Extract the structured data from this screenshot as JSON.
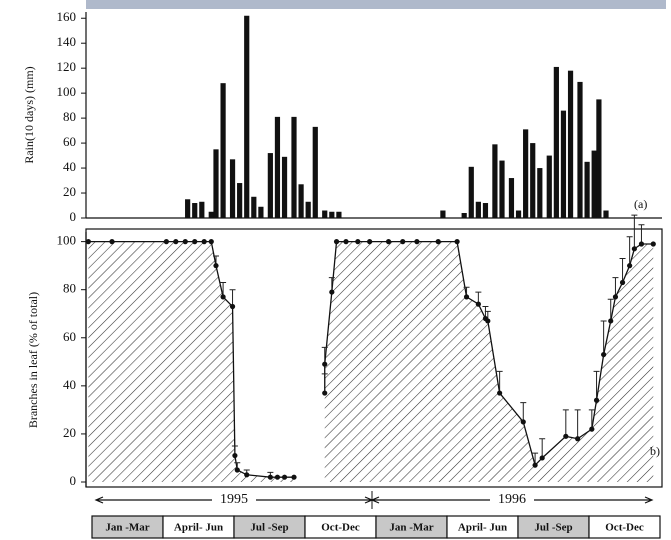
{
  "chart_data": [
    {
      "type": "bar",
      "ylabel": "Rain(10 days) (mm)",
      "panel_label": "(a)",
      "color": "#111111",
      "x": [
        4.3,
        4.6,
        4.9,
        5.3,
        5.5,
        5.8,
        6.2,
        6.5,
        6.8,
        7.1,
        7.4,
        7.8,
        8.1,
        8.4,
        8.8,
        9.1,
        9.4,
        9.7,
        10.1,
        10.4,
        10.7,
        15.1,
        16.0,
        16.3,
        16.6,
        16.9,
        17.3,
        17.6,
        18.0,
        18.3,
        18.6,
        18.9,
        19.2,
        19.6,
        19.9,
        20.2,
        20.5,
        20.9,
        21.2,
        21.5,
        21.7,
        22.0
      ],
      "values": [
        15,
        12,
        13,
        5,
        55,
        108,
        47,
        28,
        162,
        17,
        9,
        52,
        81,
        49,
        81,
        27,
        13,
        73,
        6,
        5,
        5,
        6,
        4,
        41,
        13,
        12,
        59,
        46,
        32,
        6,
        71,
        60,
        40,
        50,
        121,
        86,
        118,
        109,
        45,
        54,
        95,
        6
      ],
      "xlim": [
        0,
        24.2
      ],
      "ylim": [
        0,
        165
      ],
      "yticks": [
        0,
        20,
        40,
        60,
        80,
        100,
        120,
        140,
        160
      ]
    },
    {
      "type": "line",
      "ylabel": "Branches in leaf (% of total)",
      "panel_label": "b)",
      "color": "#111111",
      "x": [
        0.1,
        1.1,
        3.4,
        3.8,
        4.2,
        4.6,
        5.0,
        5.3,
        5.5,
        5.8,
        6.2,
        6.3,
        6.4,
        6.8,
        7.8,
        8.1,
        8.4,
        8.8,
        9.3,
        10.1,
        10.1,
        10.4,
        10.6,
        11.0,
        11.5,
        12.0,
        12.8,
        13.4,
        14.0,
        14.9,
        15.7,
        16.1,
        16.6,
        16.9,
        17.0,
        17.5,
        18.5,
        19.0,
        19.3,
        20.3,
        20.8,
        21.4,
        21.6,
        21.9,
        22.2,
        22.4,
        22.7,
        23.0,
        23.2,
        23.5,
        24.0
      ],
      "values": [
        100,
        100,
        100,
        100,
        100,
        100,
        100,
        100,
        90,
        77,
        73,
        11,
        5,
        3,
        2,
        2,
        2,
        2,
        null,
        37,
        49,
        79,
        100,
        100,
        100,
        100,
        100,
        100,
        100,
        100,
        100,
        77,
        74,
        68,
        67,
        37,
        25,
        7,
        10,
        19,
        18,
        22,
        34,
        53,
        67,
        77,
        83,
        90,
        97,
        99,
        99
      ],
      "errors": [
        null,
        null,
        null,
        null,
        null,
        null,
        null,
        null,
        4,
        6,
        7,
        4,
        3,
        2,
        2,
        null,
        null,
        null,
        null,
        8,
        7,
        6,
        null,
        null,
        null,
        null,
        null,
        null,
        null,
        null,
        null,
        4,
        5,
        5,
        4,
        9,
        8,
        5,
        8,
        11,
        12,
        8,
        12,
        14,
        9,
        8,
        10,
        12,
        14,
        8,
        null
      ],
      "xlim": [
        0,
        24.2
      ],
      "ylim": [
        0,
        104
      ],
      "yticks": [
        0,
        20,
        40,
        60,
        80,
        100
      ]
    }
  ],
  "timeline": {
    "years": [
      "1995",
      "1996"
    ],
    "quarters": [
      "Jan -Mar",
      "April- Jun",
      "Jul -Sep",
      "Oct-Dec",
      "Jan -Mar",
      "April- Jun",
      "Jul -Sep",
      "Oct-Dec"
    ]
  }
}
